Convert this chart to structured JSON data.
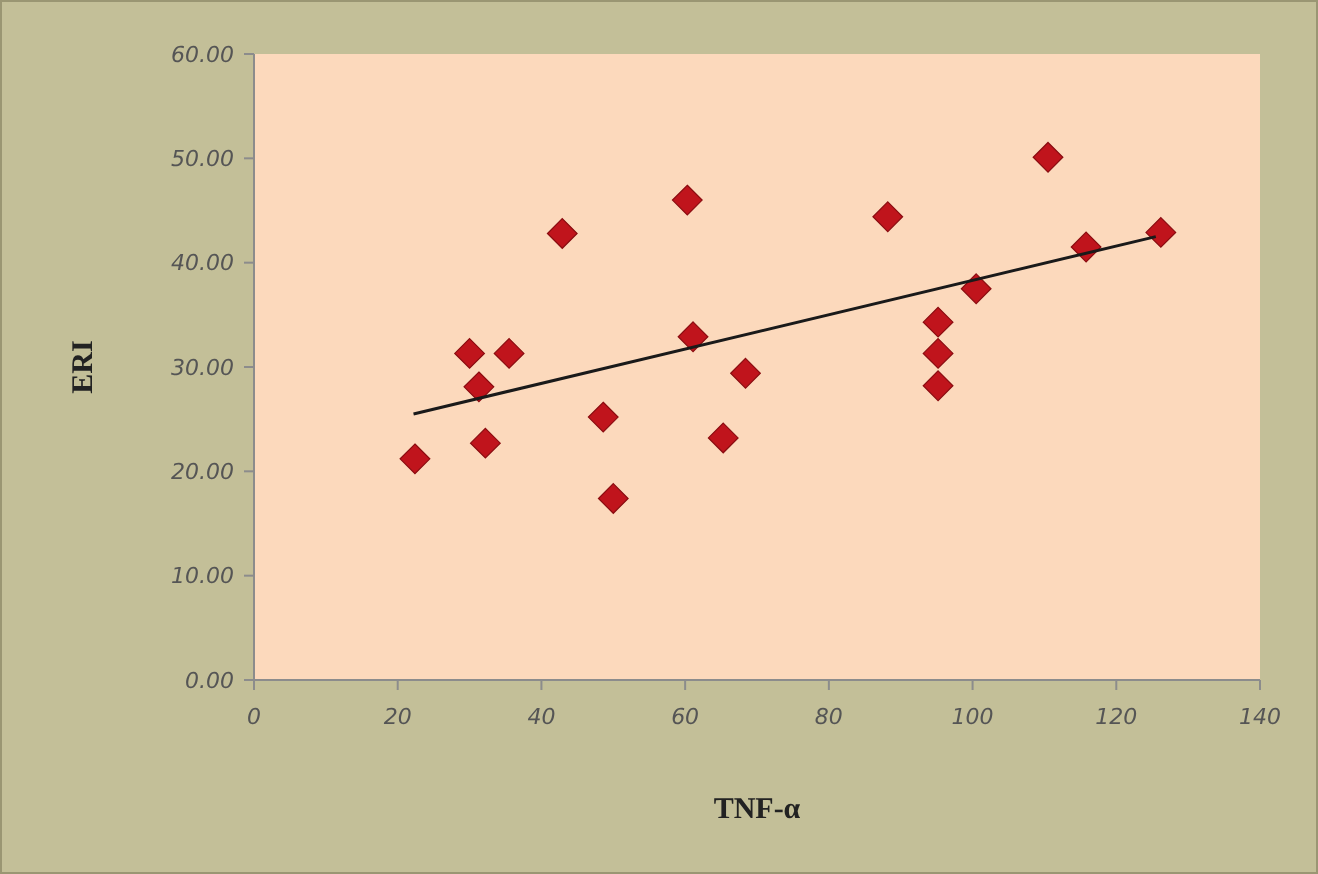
{
  "chart_data": {
    "type": "scatter",
    "xlabel": "TNF-α",
    "ylabel": "ERI",
    "xlim": [
      0,
      140
    ],
    "xticks": [
      0,
      20,
      40,
      60,
      80,
      100,
      120,
      140
    ],
    "ylim": [
      0,
      60
    ],
    "yticks": [
      {
        "value": 0,
        "label": "0.00"
      },
      {
        "value": 10,
        "label": "10.00"
      },
      {
        "value": 20,
        "label": "20.00"
      },
      {
        "value": 30,
        "label": "30.00"
      },
      {
        "value": 40,
        "label": "40.00"
      },
      {
        "value": 50,
        "label": "50.00"
      },
      {
        "value": 60,
        "label": "60.00"
      }
    ],
    "grid": false,
    "marker": "diamond",
    "series": [
      {
        "color": "#c0141c",
        "x": [
          22.4,
          30.0,
          35.5,
          31.3,
          32.2,
          42.9,
          48.6,
          50.0,
          60.3,
          61.1,
          65.3,
          68.4,
          88.2,
          95.2,
          95.2,
          95.2,
          100.5,
          110.5,
          115.8,
          126.2
        ],
        "values": [
          21.2,
          31.3,
          31.3,
          28.1,
          22.7,
          42.8,
          25.2,
          17.4,
          46.0,
          32.9,
          23.2,
          29.4,
          44.4,
          34.3,
          31.3,
          28.2,
          37.5,
          50.1,
          41.5,
          42.9
        ]
      },
      {
        "type": "line",
        "color": "#1a1a1a",
        "marker": "none",
        "line_style": "solid",
        "x": [
          22.2,
          125.5
        ],
        "values": [
          25.5,
          42.5
        ]
      }
    ]
  }
}
